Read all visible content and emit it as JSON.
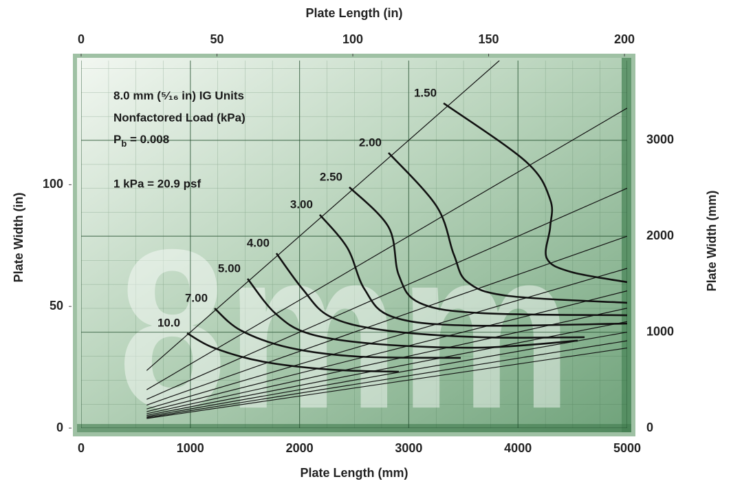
{
  "chart_data": {
    "type": "line",
    "xlabel": "Plate Length (mm)",
    "x2label": "Plate Length (in)",
    "ylabel": "Plate Width (in)",
    "y2label": "Plate Width (mm)",
    "xlim": [
      0,
      5000
    ],
    "xticks": [
      0,
      1000,
      2000,
      3000,
      4000,
      5000
    ],
    "x2lim": [
      0,
      201
    ],
    "x2ticks": [
      0,
      50,
      100,
      150,
      200
    ],
    "ylim": [
      0,
      151
    ],
    "yticks": [
      0,
      50,
      100
    ],
    "y2lim": [
      0,
      3830
    ],
    "y2ticks": [
      0,
      1000,
      2000,
      3000
    ],
    "grid": true,
    "watermark": "8mm",
    "annotations": [
      "8.0 mm (⁵⁄₁₆ in) IG Units",
      "Nonfactored Load (kPa)",
      "1 kPa = 20.9 psf"
    ],
    "pb_label": {
      "symbol": "P",
      "subscript": "b",
      "text": " = 0.008"
    },
    "diagonal_slopes": [
      1,
      0.667,
      0.5,
      0.4,
      0.333,
      0.286,
      0.25,
      0.222,
      0.2,
      0.182,
      0.167
    ],
    "diagonal_x_range": [
      600,
      5000
    ],
    "series": [
      {
        "name": "1.50",
        "color": "#111111",
        "axis": "y2",
        "x": [
          3319,
          4074,
          4295,
          4295,
          4263,
          4484,
          5000
        ],
        "values": [
          3386,
          2776,
          2382,
          2095,
          1772,
          1628,
          1521
        ]
      },
      {
        "name": "2.00",
        "color": "#111111",
        "axis": "y2",
        "x": [
          2815,
          3256,
          3413,
          3539,
          3917,
          5000
        ],
        "values": [
          2869,
          2310,
          1808,
          1521,
          1377,
          1306
        ]
      },
      {
        "name": "2.50",
        "color": "#111111",
        "axis": "y2",
        "x": [
          2456,
          2815,
          2909,
          3098,
          3665,
          5000
        ],
        "values": [
          2511,
          2095,
          1593,
          1306,
          1198,
          1176
        ]
      },
      {
        "name": "3.00",
        "color": "#111111",
        "axis": "y2",
        "x": [
          2185,
          2437,
          2594,
          2846,
          3539,
          5000
        ],
        "values": [
          2224,
          1880,
          1449,
          1162,
          1069,
          1090
        ]
      },
      {
        "name": "4.00",
        "color": "#111111",
        "axis": "y2",
        "x": [
          1788,
          2028,
          2280,
          2783,
          3665,
          4610
        ],
        "values": [
          1822,
          1449,
          1162,
          1019,
          947,
          947
        ]
      },
      {
        "name": "5.00",
        "color": "#111111",
        "axis": "y2",
        "x": [
          1524,
          1776,
          2091,
          2720,
          3665,
          4547
        ],
        "values": [
          1557,
          1198,
          983,
          875,
          839,
          911
        ]
      },
      {
        "name": "7.00",
        "color": "#111111",
        "axis": "y2",
        "x": [
          1222,
          1461,
          1902,
          2531,
          3476
        ],
        "values": [
          1248,
          1019,
          839,
          746,
          732
        ]
      },
      {
        "name": "10.0",
        "color": "#111111",
        "axis": "y2",
        "x": [
          970,
          1209,
          1650,
          2280,
          2909
        ],
        "values": [
          990,
          839,
          696,
          610,
          588
        ]
      }
    ]
  }
}
